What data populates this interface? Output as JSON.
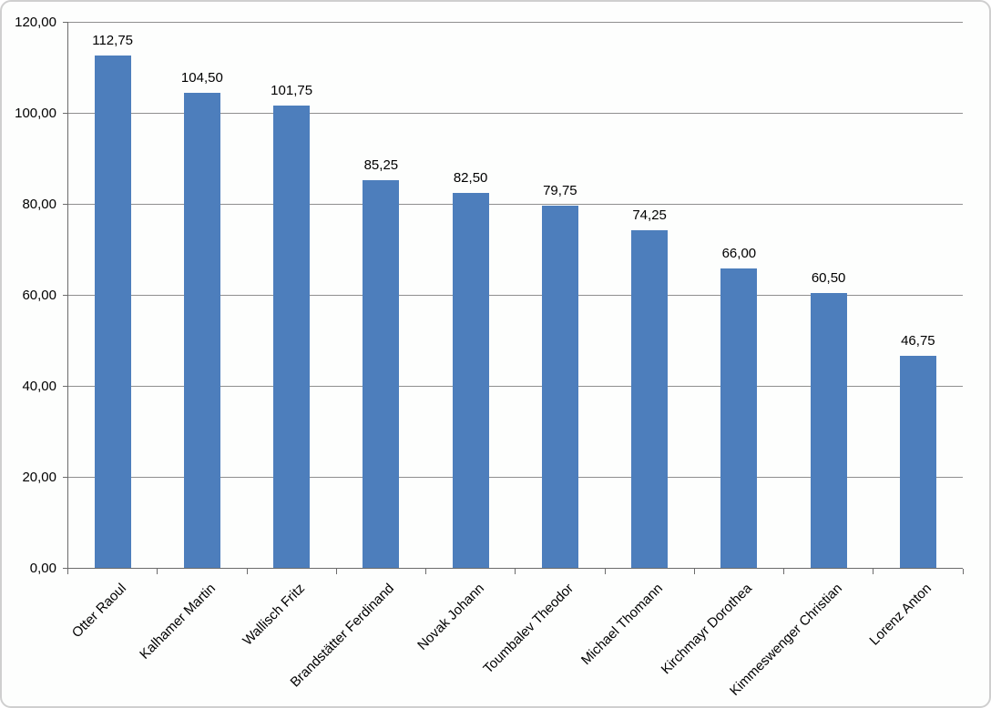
{
  "chart_data": {
    "type": "bar",
    "title": "",
    "xlabel": "",
    "ylabel": "",
    "categories": [
      "Otter Raoul",
      "Kalhamer Martin",
      "Wallisch Fritz",
      "Brandstätter Ferdinand",
      "Novak Johann",
      "Toumbalev Theodor",
      "Michael Thomann",
      "Kirchmayr Dorothea",
      "Kimmeswenger Christian",
      "Lorenz Anton"
    ],
    "values": [
      112.75,
      104.5,
      101.75,
      85.25,
      82.5,
      79.75,
      74.25,
      66.0,
      60.5,
      46.75
    ],
    "data_labels": [
      "112,75",
      "104,50",
      "101,75",
      "85,25",
      "82,50",
      "79,75",
      "74,25",
      "66,00",
      "60,50",
      "46,75"
    ],
    "y_tick_labels": [
      "0,00",
      "20,00",
      "40,00",
      "60,00",
      "80,00",
      "100,00",
      "120,00"
    ],
    "y_tick_values": [
      0,
      20,
      40,
      60,
      80,
      100,
      120
    ],
    "ylim": [
      0,
      120
    ],
    "y_step": 20,
    "grid": true,
    "legend": false,
    "number_format": "comma-decimal",
    "category_label_rotation_deg": 45
  },
  "colors": {
    "bar_fill": "#4d7ebc",
    "gridline": "#8f8f8f",
    "axis": "#6b6b6b",
    "text": "#000000",
    "frame_border": "#cfcfcf",
    "background": "#fdfefd"
  }
}
